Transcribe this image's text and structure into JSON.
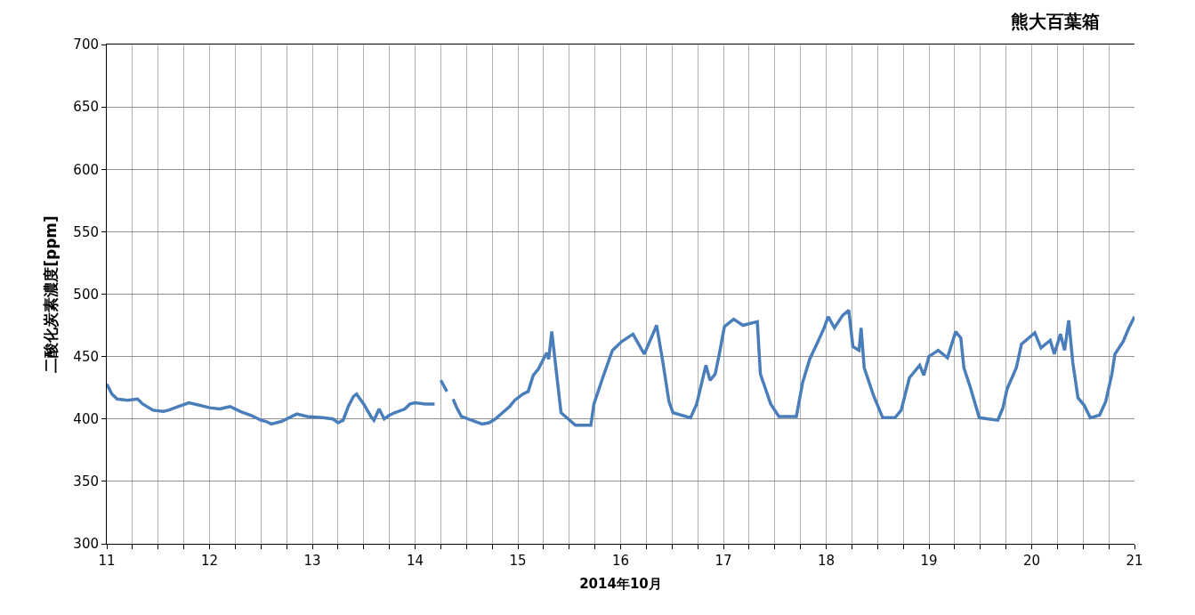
{
  "chart_data": {
    "type": "line",
    "title": "熊大百葉箱",
    "xlabel": "2014年10月",
    "ylabel": "二酸化炭素濃度[ppm]",
    "xlim": [
      11,
      21
    ],
    "ylim": [
      300,
      700
    ],
    "xticks": [
      11,
      {
        "value": 11.25,
        "label": null
      },
      {
        "value": 11.5,
        "label": null
      },
      {
        "value": 11.75,
        "label": null
      },
      12,
      {
        "value": 12.25,
        "label": null
      },
      {
        "value": 12.5,
        "label": null
      },
      {
        "value": 12.75,
        "label": null
      },
      13,
      {
        "value": 13.25,
        "label": null
      },
      {
        "value": 13.5,
        "label": null
      },
      {
        "value": 13.75,
        "label": null
      },
      14,
      {
        "value": 14.25,
        "label": null
      },
      {
        "value": 14.5,
        "label": null
      },
      {
        "value": 14.75,
        "label": null
      },
      15,
      {
        "value": 15.25,
        "label": null
      },
      {
        "value": 15.5,
        "label": null
      },
      {
        "value": 15.75,
        "label": null
      },
      16,
      {
        "value": 16.25,
        "label": null
      },
      {
        "value": 16.5,
        "label": null
      },
      {
        "value": 16.75,
        "label": null
      },
      17,
      {
        "value": 17.25,
        "label": null
      },
      {
        "value": 17.5,
        "label": null
      },
      {
        "value": 17.75,
        "label": null
      },
      18,
      {
        "value": 18.25,
        "label": null
      },
      {
        "value": 18.5,
        "label": null
      },
      {
        "value": 18.75,
        "label": null
      },
      19,
      {
        "value": 19.25,
        "label": null
      },
      {
        "value": 19.5,
        "label": null
      },
      {
        "value": 19.75,
        "label": null
      },
      20,
      {
        "value": 20.25,
        "label": null
      },
      {
        "value": 20.5,
        "label": null
      },
      {
        "value": 20.75,
        "label": null
      },
      21
    ],
    "yticks": [
      300,
      350,
      400,
      450,
      500,
      550,
      600,
      650,
      700
    ],
    "grid": true,
    "marker": "none",
    "line_style": "solid",
    "series": [
      {
        "color": "#4a7ebb",
        "x": [
          11.0,
          11.05,
          11.1,
          11.2,
          11.3,
          11.35,
          11.45,
          11.55,
          11.6,
          11.7,
          11.8,
          11.9,
          12.0,
          12.1,
          12.2,
          12.3,
          12.4,
          12.5,
          12.55,
          12.6,
          12.7,
          12.8,
          12.85,
          12.95,
          13.1,
          13.2,
          13.25,
          13.3,
          13.35,
          13.4,
          13.43,
          13.5,
          13.57,
          13.6,
          13.65,
          13.7,
          13.75,
          13.8,
          13.9,
          13.95,
          14.0,
          14.1,
          14.19,
          14.22,
          14.25,
          14.31,
          14.34,
          14.37,
          14.4,
          14.45,
          14.55,
          14.65,
          14.72,
          14.78,
          14.85,
          14.92,
          14.97,
          15.05,
          15.1,
          15.15,
          15.2,
          15.28,
          15.3,
          15.33,
          15.42,
          15.56,
          15.71,
          15.74,
          15.83,
          15.92,
          16.01,
          16.12,
          16.23,
          16.35,
          16.41,
          16.47,
          16.51,
          16.68,
          16.74,
          16.83,
          16.87,
          16.92,
          16.96,
          17.01,
          17.1,
          17.19,
          17.33,
          17.36,
          17.46,
          17.54,
          17.62,
          17.71,
          17.77,
          17.84,
          17.92,
          17.98,
          18.02,
          18.08,
          18.16,
          18.22,
          18.26,
          18.32,
          18.34,
          18.37,
          18.46,
          18.55,
          18.67,
          18.73,
          18.81,
          18.91,
          18.95,
          19.0,
          19.09,
          19.18,
          19.26,
          19.31,
          19.34,
          19.4,
          19.49,
          19.67,
          19.72,
          19.76,
          19.85,
          19.9,
          20.03,
          20.09,
          20.18,
          20.22,
          20.28,
          20.32,
          20.36,
          20.4,
          20.45,
          20.51,
          20.57,
          20.66,
          20.72,
          20.78,
          20.81,
          20.89,
          20.94,
          21.0
        ],
        "values": [
          428,
          420,
          416,
          415,
          416,
          412,
          407,
          406,
          407,
          410,
          413,
          411,
          409,
          408,
          410,
          406,
          403,
          399,
          398,
          396,
          398,
          402,
          404,
          402,
          401,
          400,
          397,
          399,
          410,
          418,
          420,
          412,
          402,
          399,
          408,
          400,
          403,
          405,
          408,
          412,
          413,
          412,
          412,
          null,
          431,
          422,
          null,
          416,
          410,
          402,
          399,
          396,
          397,
          400,
          405,
          410,
          415,
          420,
          422,
          435,
          440,
          453,
          448,
          470,
          405,
          395,
          395,
          412,
          434,
          455,
          462,
          468,
          452,
          475,
          446,
          414,
          405,
          401,
          412,
          443,
          431,
          436,
          452,
          474,
          480,
          475,
          478,
          436,
          412,
          402,
          402,
          402,
          429,
          448,
          462,
          473,
          482,
          473,
          483,
          487,
          458,
          455,
          473,
          441,
          419,
          401,
          401,
          407,
          433,
          443,
          435,
          450,
          455,
          449,
          470,
          465,
          441,
          426,
          401,
          399,
          409,
          424,
          441,
          460,
          469,
          457,
          463,
          452,
          468,
          455,
          479,
          445,
          417,
          411,
          401,
          403,
          414,
          436,
          452,
          462,
          472,
          482
        ]
      }
    ]
  }
}
